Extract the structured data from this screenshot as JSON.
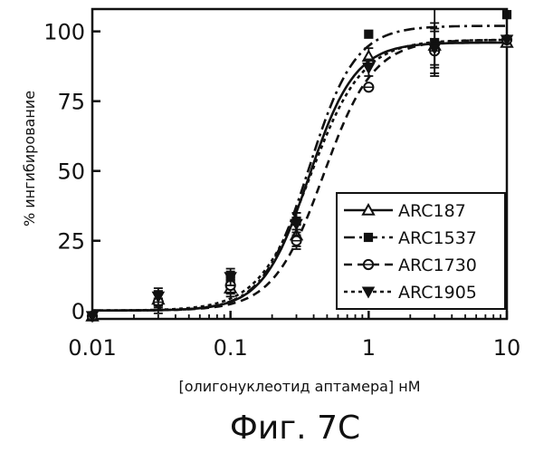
{
  "caption": "Фиг. 7C",
  "chart_data": {
    "type": "scatter",
    "xscale": "log",
    "xlabel": "[олигонуклеотид аптамера] нМ",
    "ylabel": "% ингибирование",
    "xlim": [
      0.01,
      10
    ],
    "ylim": [
      -3,
      108
    ],
    "xticks": [
      {
        "value": 0.01,
        "label": "0.01"
      },
      {
        "value": 0.1,
        "label": "0.1"
      },
      {
        "value": 1,
        "label": "1"
      },
      {
        "value": 10,
        "label": "10"
      }
    ],
    "yticks": [
      {
        "value": 0,
        "label": "0"
      },
      {
        "value": 25,
        "label": "25"
      },
      {
        "value": 50,
        "label": "50"
      },
      {
        "value": 75,
        "label": "75"
      },
      {
        "value": 100,
        "label": "100"
      }
    ],
    "grid": false,
    "legend_position": "bottom-right",
    "series": [
      {
        "name": "ARC187",
        "marker": "triangle-up-open",
        "line": "solid",
        "points": [
          {
            "x": 0.01,
            "y": -2
          },
          {
            "x": 0.03,
            "y": 4,
            "err": 3
          },
          {
            "x": 0.1,
            "y": 8,
            "err": 3
          },
          {
            "x": 0.3,
            "y": 27,
            "err": 4
          },
          {
            "x": 1,
            "y": 91,
            "err": 3
          },
          {
            "x": 3,
            "y": 95,
            "err": 8
          },
          {
            "x": 10,
            "y": 96
          }
        ]
      },
      {
        "name": "ARC1537",
        "marker": "square-filled",
        "line": "dashdot",
        "points": [
          {
            "x": 0.01,
            "y": -2
          },
          {
            "x": 0.03,
            "y": 3,
            "err": 4
          },
          {
            "x": 0.1,
            "y": 11,
            "err": 3
          },
          {
            "x": 0.3,
            "y": 32,
            "err": 3
          },
          {
            "x": 1,
            "y": 99
          },
          {
            "x": 3,
            "y": 96,
            "err": 12
          },
          {
            "x": 10,
            "y": 106
          }
        ]
      },
      {
        "name": "ARC1730",
        "marker": "circle-open",
        "line": "dashed",
        "points": [
          {
            "x": 0.01,
            "y": -2
          },
          {
            "x": 0.03,
            "y": 3,
            "err": 3
          },
          {
            "x": 0.1,
            "y": 9,
            "err": 3
          },
          {
            "x": 0.3,
            "y": 25,
            "err": 3
          },
          {
            "x": 1,
            "y": 80
          },
          {
            "x": 3,
            "y": 93,
            "err": 8
          },
          {
            "x": 10,
            "y": 97
          }
        ]
      },
      {
        "name": "ARC1905",
        "marker": "triangle-down-filled",
        "line": "dotted",
        "points": [
          {
            "x": 0.01,
            "y": -2
          },
          {
            "x": 0.03,
            "y": 5,
            "err": 3
          },
          {
            "x": 0.1,
            "y": 12,
            "err": 3
          },
          {
            "x": 0.3,
            "y": 31,
            "err": 4
          },
          {
            "x": 1,
            "y": 87,
            "err": 3
          },
          {
            "x": 3,
            "y": 94,
            "err": 6
          },
          {
            "x": 10,
            "y": 97
          }
        ]
      }
    ],
    "fit_curves": [
      {
        "series": "ARC187",
        "bottom": 0,
        "top": 96,
        "ec50": 0.37,
        "hill": 2.6
      },
      {
        "series": "ARC1537",
        "bottom": 0,
        "top": 102,
        "ec50": 0.37,
        "hill": 2.6
      },
      {
        "series": "ARC1730",
        "bottom": 0,
        "top": 97,
        "ec50": 0.47,
        "hill": 2.4
      },
      {
        "series": "ARC1905",
        "bottom": 0,
        "top": 97,
        "ec50": 0.38,
        "hill": 2.3
      }
    ]
  }
}
